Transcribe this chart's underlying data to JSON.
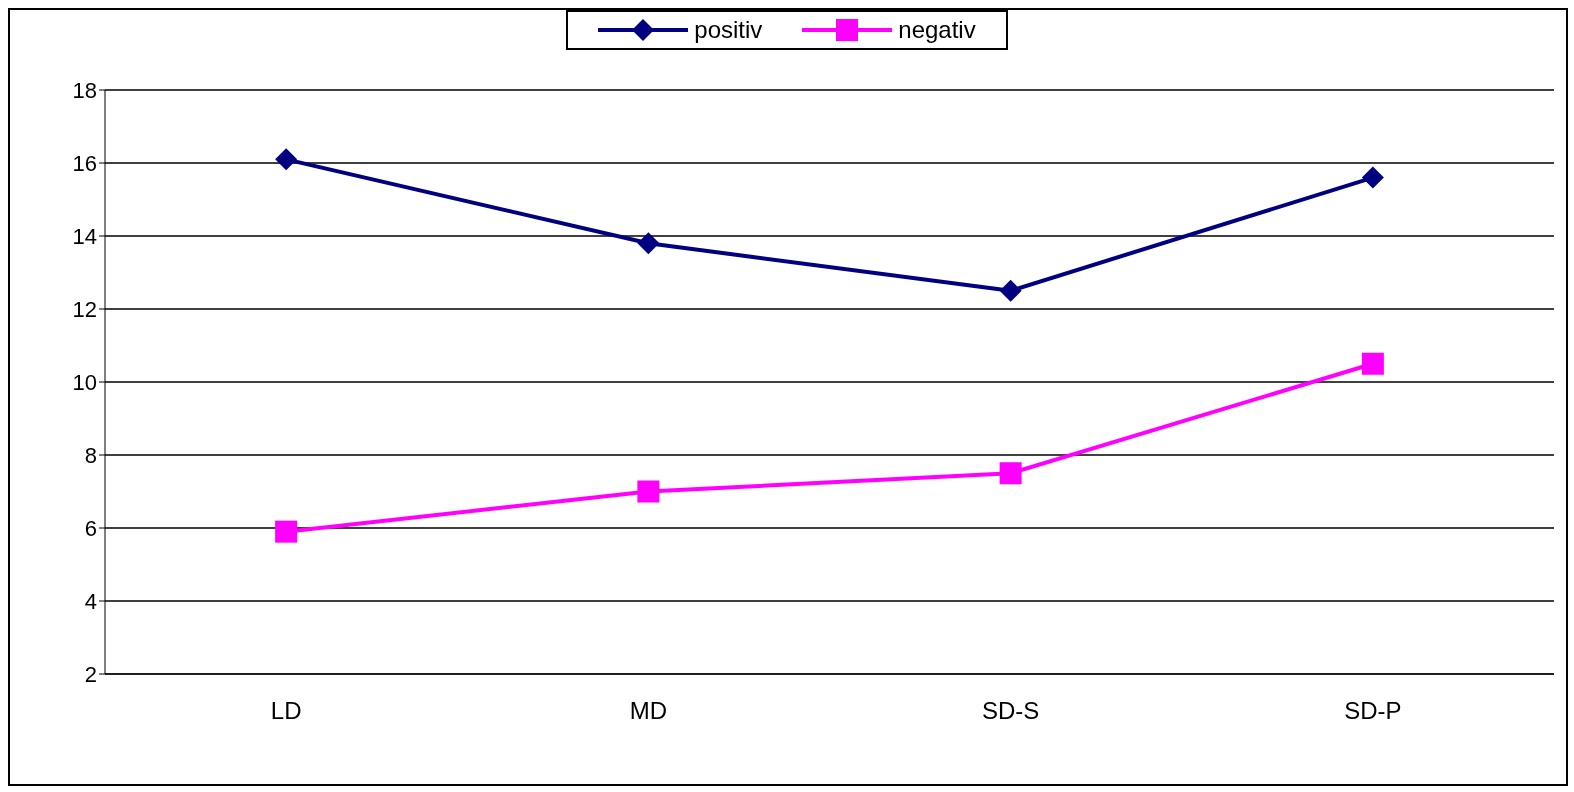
{
  "chart_data": {
    "type": "line",
    "categories": [
      "LD",
      "MD",
      "SD-S",
      "SD-P"
    ],
    "series": [
      {
        "name": "positiv",
        "color": "#000080",
        "marker": "diamond",
        "values": [
          16.1,
          13.8,
          12.5,
          15.6
        ]
      },
      {
        "name": "negativ",
        "color": "#ff00ff",
        "marker": "square",
        "values": [
          5.9,
          7.0,
          7.5,
          10.5
        ]
      }
    ],
    "ylim": [
      2,
      18
    ],
    "yticks": [
      2,
      4,
      6,
      8,
      10,
      12,
      14,
      16,
      18
    ],
    "grid": "y",
    "legend": "top",
    "line_style": "solid"
  }
}
